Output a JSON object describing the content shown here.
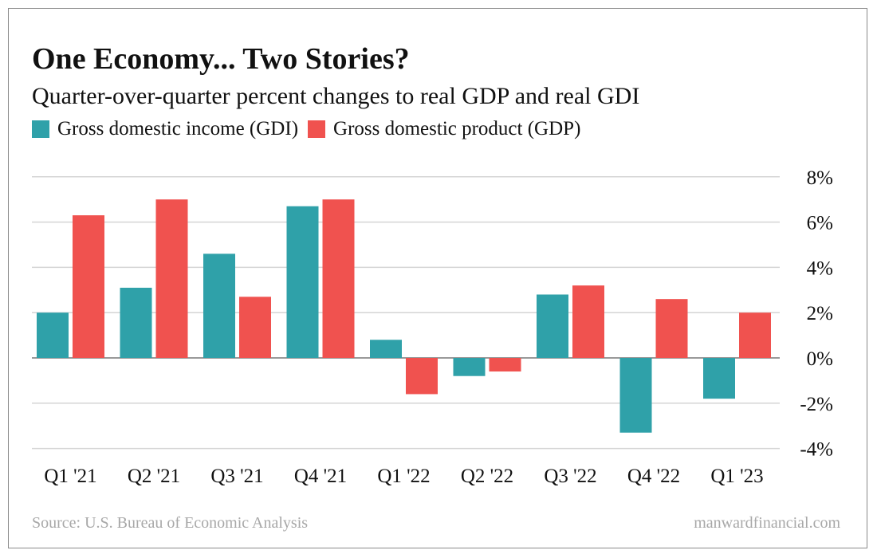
{
  "chart_data": {
    "type": "bar",
    "title": "One Economy... Two Stories?",
    "subtitle": "Quarter-over-quarter percent changes to real GDP and real GDI",
    "categories": [
      "Q1 '21",
      "Q2 '21",
      "Q3 '21",
      "Q4 '21",
      "Q1 '22",
      "Q2 '22",
      "Q3 '22",
      "Q4 '22",
      "Q1 '23"
    ],
    "series": [
      {
        "name": "Gross domestic income (GDI)",
        "color": "#2fa1a9",
        "values": [
          2.0,
          3.1,
          4.6,
          6.7,
          0.8,
          -0.8,
          2.8,
          -3.3,
          -1.8
        ]
      },
      {
        "name": "Gross domestic product (GDP)",
        "color": "#f0524f",
        "values": [
          6.3,
          7.0,
          2.7,
          7.0,
          -1.6,
          -0.6,
          3.2,
          2.6,
          2.0
        ]
      }
    ],
    "ylim": [
      -4,
      8
    ],
    "yticks": [
      8,
      6,
      4,
      2,
      0,
      -2,
      -4
    ],
    "ytick_labels": [
      "8%",
      "6%",
      "4%",
      "2%",
      "0%",
      "-2%",
      "-4%"
    ],
    "y_axis_side": "right",
    "grid": true,
    "legend_placement": "top-left",
    "source": "Source: U.S. Bureau of Economic Analysis",
    "credit": "manwardfinancial.com"
  }
}
